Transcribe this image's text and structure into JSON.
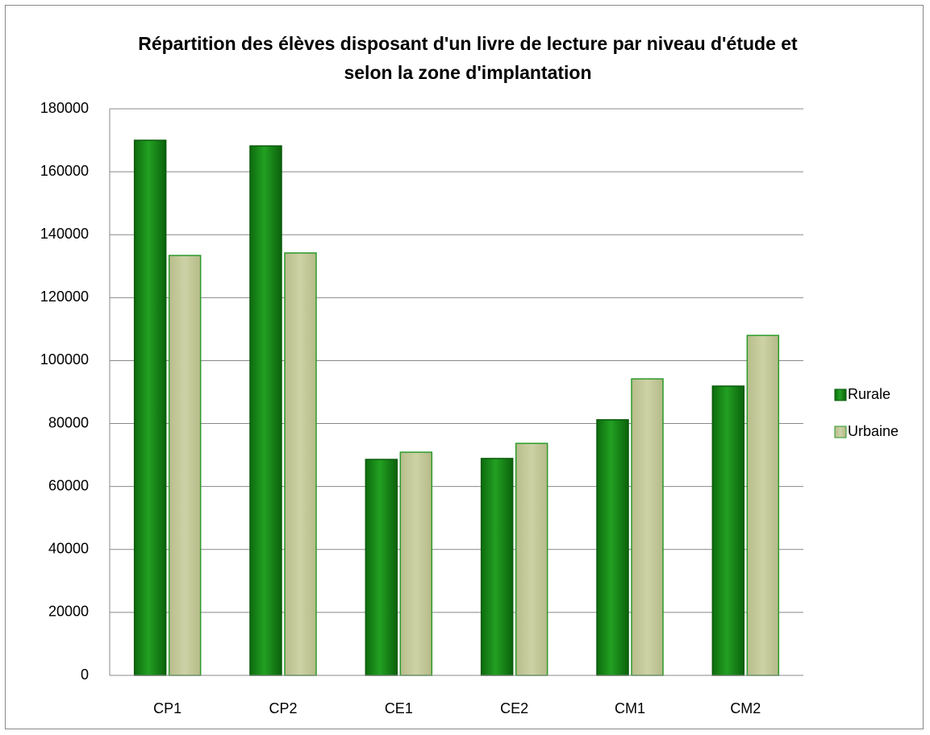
{
  "chart_data": {
    "type": "bar",
    "title": "Répartition des élèves disposant d'un livre de lecture par niveau d'étude et selon la zone d'implantation",
    "categories": [
      "CP1",
      "CP2",
      "CE1",
      "CE2",
      "CM1",
      "CM2"
    ],
    "series": [
      {
        "name": "Rurale",
        "color": "#1a8c1a",
        "values": [
          170000,
          168200,
          68600,
          68900,
          81200,
          91900
        ]
      },
      {
        "name": "Urbaine",
        "color": "#c4c99a",
        "values": [
          133400,
          134200,
          70900,
          73700,
          94200,
          108000
        ]
      }
    ],
    "ylim": [
      0,
      180000
    ],
    "yticks": [
      0,
      20000,
      40000,
      60000,
      80000,
      100000,
      120000,
      140000,
      160000,
      180000
    ],
    "grid": true,
    "legend": "right"
  }
}
